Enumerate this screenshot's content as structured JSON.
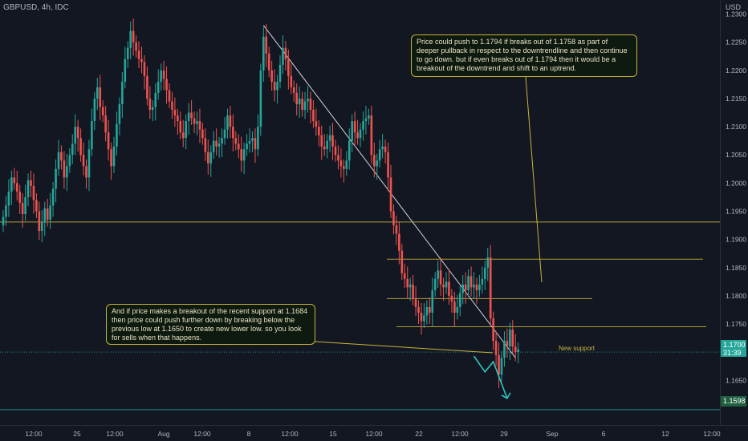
{
  "header": {
    "symbol": "GBPUSD, 4h, IDC",
    "currency": "USD"
  },
  "colors": {
    "up": "#26a69a",
    "down": "#ef5350",
    "annotation": "#c8b33a",
    "trendline": "#d1d4dc",
    "arrow": "#2cc6c0",
    "price_tag": "#26a69a"
  },
  "chart_data": {
    "type": "candlestick",
    "title": "GBPUSD, 4h, IDC",
    "ylim": [
      1.1585,
      1.2315
    ],
    "y_ticks": [
      "1.2300",
      "1.2250",
      "1.2200",
      "1.2150",
      "1.2100",
      "1.2050",
      "1.2000",
      "1.1950",
      "1.1900",
      "1.1850",
      "1.1800",
      "1.1750",
      "1.1650"
    ],
    "x_ticks": [
      "12:00",
      "25",
      "12:00",
      "Aug",
      "12:00",
      "8",
      "12:00",
      "15",
      "12:00",
      "22",
      "12:00",
      "29",
      "Sep",
      "6",
      "12",
      "12:00"
    ],
    "levels": [
      1.1931,
      1.1865,
      1.1795,
      1.1745,
      1.1598
    ],
    "trendline": {
      "from_index": 94,
      "from_price": 1.228,
      "to_index": 185,
      "to_price": 1.169
    },
    "last_price": "1.1700",
    "countdown": "31:39",
    "support_price_tag": "1.1598",
    "new_support_label": "New support",
    "projection": [
      {
        "index": 170,
        "price": 1.1693
      },
      {
        "index": 174,
        "price": 1.1665
      },
      {
        "index": 177,
        "price": 1.1683
      },
      {
        "index": 182,
        "price": 1.1618
      }
    ],
    "closes": [
      1.194,
      1.196,
      1.1985,
      1.201,
      1.2,
      1.1985,
      1.1965,
      1.1945,
      1.1975,
      1.2005,
      1.1995,
      1.197,
      1.195,
      1.1915,
      1.193,
      1.1955,
      1.1935,
      1.196,
      1.199,
      1.2025,
      1.2055,
      1.204,
      1.201,
      1.203,
      1.205,
      1.207,
      1.21,
      1.208,
      1.205,
      1.203,
      1.201,
      1.206,
      1.211,
      1.215,
      1.217,
      1.2135,
      1.212,
      1.209,
      1.206,
      1.203,
      1.2065,
      1.2105,
      1.214,
      1.218,
      1.222,
      1.224,
      1.227,
      1.225,
      1.2235,
      1.222,
      1.2215,
      1.219,
      1.215,
      1.213,
      1.2135,
      1.216,
      1.218,
      1.22,
      1.2185,
      1.2165,
      1.2145,
      1.213,
      1.212,
      1.211,
      1.209,
      1.208,
      1.211,
      1.2125,
      1.2115,
      1.2105,
      1.211,
      1.2095,
      1.208,
      1.2055,
      1.2035,
      1.2055,
      1.2075,
      1.2065,
      1.207,
      1.208,
      1.2095,
      1.212,
      1.21,
      1.208,
      1.207,
      1.206,
      1.204,
      1.206,
      1.207,
      1.2075,
      1.208,
      1.206,
      1.21,
      1.22,
      1.226,
      1.223,
      1.22,
      1.218,
      1.2165,
      1.218,
      1.221,
      1.224,
      1.222,
      1.219,
      1.217,
      1.216,
      1.214,
      1.215,
      1.213,
      1.2145,
      1.215,
      1.213,
      1.211,
      1.21,
      1.2085,
      1.2065,
      1.206,
      1.2075,
      1.2085,
      1.2065,
      1.205,
      1.204,
      1.203,
      1.2025,
      1.204,
      1.2075,
      1.211,
      1.209,
      1.208,
      1.2095,
      1.211,
      1.2115,
      1.212,
      1.205,
      1.203,
      1.204,
      1.206,
      1.2065,
      1.2055,
      1.201,
      1.195,
      1.1925,
      1.191,
      1.188,
      1.184,
      1.183,
      1.1815,
      1.182,
      1.1795,
      1.178,
      1.177,
      1.1755,
      1.1765,
      1.178,
      1.177,
      1.181,
      1.183,
      1.1845,
      1.182,
      1.1815,
      1.1825,
      1.18,
      1.179,
      1.177,
      1.178,
      1.1805,
      1.182,
      1.181,
      1.1835,
      1.1815,
      1.182,
      1.181,
      1.182,
      1.183,
      1.185,
      1.1868,
      1.176,
      1.172,
      1.1695,
      1.166,
      1.169,
      1.172,
      1.171,
      1.174,
      1.171,
      1.17,
      1.1705
    ]
  },
  "notes": {
    "upper": "Price could push to 1.1794 if breaks out of 1.1758 as part of deeper pullback in respect to the downtrendline and then continue to go down. but if even breaks out of 1.1794 then it would be a breakout of the downtrend and shift to an uptrend.",
    "lower": "And if price makes a breakout of the recent support at 1.1684 then price could push further down by breaking below the previous low at 1.1650 to create new lower low. so you look for sells when that happens."
  }
}
